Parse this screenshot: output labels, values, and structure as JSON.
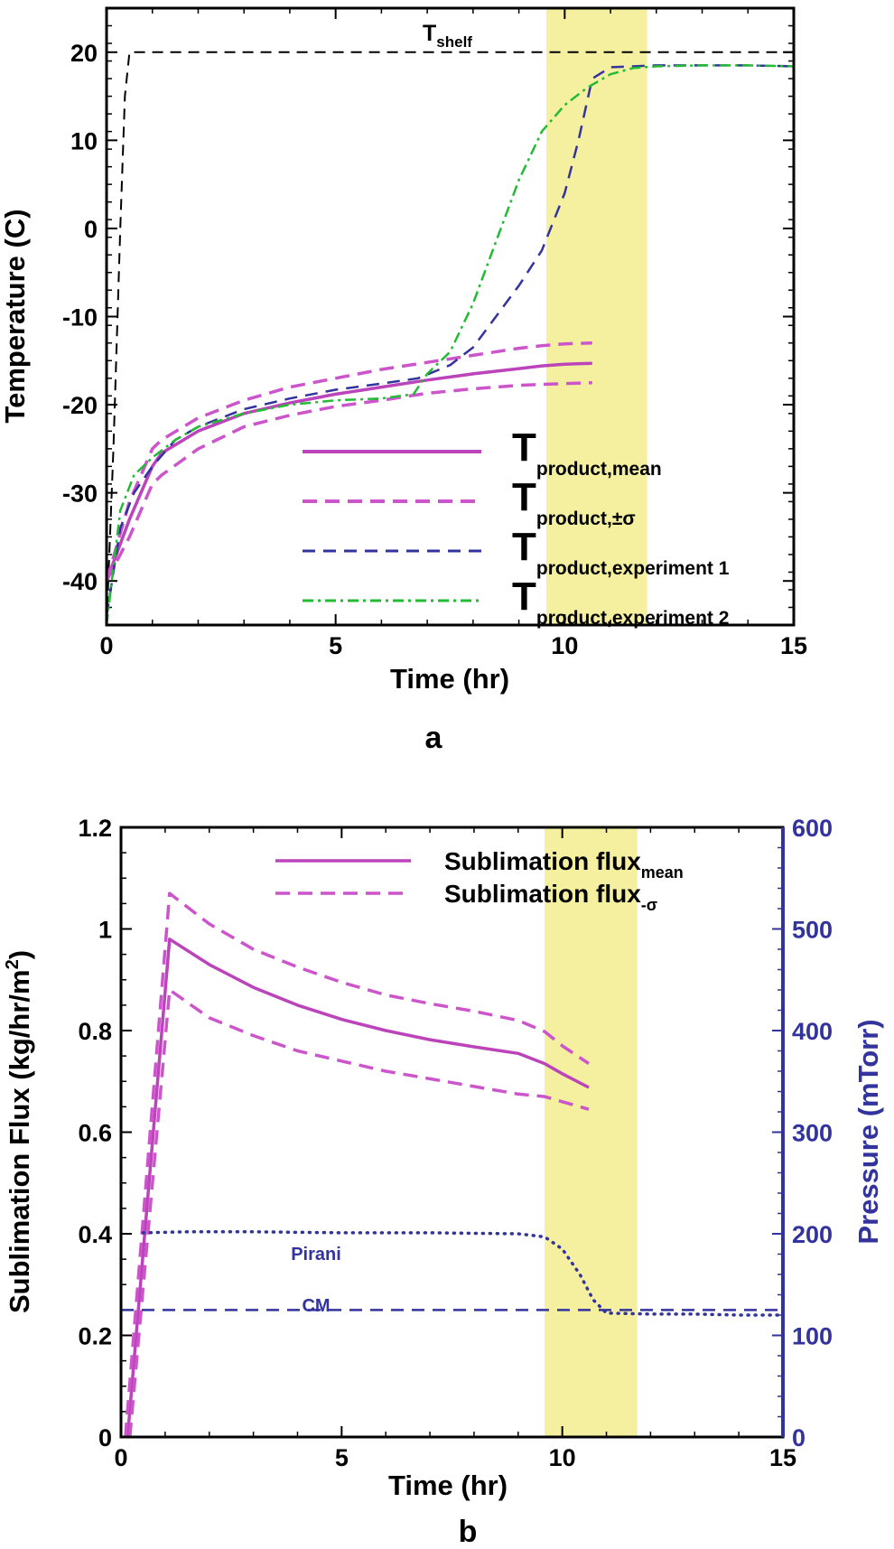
{
  "colors": {
    "mean": "#bb44bb",
    "sigma": "#cc55cc",
    "exp1": "#33339e",
    "exp2": "#22bb33",
    "shelf": "#000000",
    "highlight": "#f5f0a0",
    "right_axis": "#33339e"
  },
  "chart_data": [
    {
      "panel": "a",
      "type": "line",
      "xlabel": "Time (hr)",
      "ylabel": "Temperature (C)",
      "xlim": [
        0,
        15
      ],
      "ylim": [
        -45,
        25
      ],
      "xticks": [
        "0",
        "5",
        "10",
        "15"
      ],
      "yticks": [
        "-40",
        "-30",
        "-20",
        "-10",
        "0",
        "10",
        "20"
      ],
      "highlight_band": [
        9.6,
        11.8
      ],
      "annotation": {
        "base": "T",
        "sub": "shelf"
      },
      "legend": [
        {
          "series": "mean",
          "base": "T",
          "sub": "product,mean"
        },
        {
          "series": "sigma",
          "base": "T",
          "sub": "product,±σ"
        },
        {
          "series": "exp1",
          "base": "T",
          "sub": "product,experiment 1"
        },
        {
          "series": "exp2",
          "base": "T",
          "sub": "product,experiment 2"
        }
      ],
      "series": [
        {
          "key": "shelf",
          "style": "dash-thin",
          "x": [
            0,
            0.15,
            0.3,
            0.4,
            0.5,
            15
          ],
          "y": [
            -45,
            -25,
            0,
            15,
            20,
            20
          ]
        },
        {
          "key": "mean",
          "style": "solid",
          "x": [
            0,
            0.5,
            1,
            1.2,
            2,
            3,
            4,
            5,
            6,
            7,
            8,
            9,
            9.5,
            10,
            10.6
          ],
          "y": [
            -40,
            -33,
            -27,
            -25.5,
            -23,
            -21,
            -19.8,
            -18.8,
            -18,
            -17.2,
            -16.5,
            -15.9,
            -15.6,
            -15.4,
            -15.3
          ]
        },
        {
          "key": "sigma",
          "style": "dash",
          "x": [
            0,
            0.5,
            1,
            1.2,
            2,
            3,
            4,
            5,
            6,
            7,
            8,
            9,
            9.5,
            10,
            10.6
          ],
          "y": [
            -40,
            -31,
            -25,
            -24,
            -21.5,
            -19.5,
            -18,
            -17,
            -16,
            -15.2,
            -14.4,
            -13.6,
            -13.3,
            -13.1,
            -13
          ]
        },
        {
          "key": "sigma",
          "style": "dash",
          "x": [
            0,
            0.5,
            1,
            1.2,
            2,
            3,
            4,
            5,
            6,
            7,
            8,
            9,
            9.5,
            10,
            10.6
          ],
          "y": [
            -40,
            -35,
            -29,
            -28,
            -25,
            -22.5,
            -21.2,
            -20.2,
            -19.5,
            -18.7,
            -18.2,
            -17.8,
            -17.7,
            -17.6,
            -17.5
          ]
        },
        {
          "key": "exp1",
          "style": "dash-long",
          "x": [
            0,
            0.3,
            0.6,
            1,
            1.5,
            2,
            3,
            4,
            5,
            6,
            6.8,
            7.5,
            8,
            8.5,
            9,
            9.5,
            10,
            10.3,
            10.6,
            11,
            12,
            13,
            14,
            15
          ],
          "y": [
            -44,
            -34,
            -30,
            -27,
            -24,
            -22.5,
            -20.5,
            -19.3,
            -18.3,
            -17.6,
            -17,
            -15.5,
            -13.5,
            -10,
            -6.5,
            -2.5,
            4,
            10,
            17,
            18.3,
            18.5,
            18.5,
            18.5,
            18.4
          ]
        },
        {
          "key": "exp2",
          "style": "dashdot",
          "x": [
            0,
            0.3,
            0.6,
            1,
            1.5,
            2,
            3,
            4,
            5,
            6,
            6.7,
            7,
            7.5,
            8,
            8.5,
            9,
            9.5,
            10,
            10.5,
            11,
            11.5,
            12,
            13,
            14,
            15
          ],
          "y": [
            -45,
            -32,
            -28,
            -26,
            -24,
            -22.5,
            -21,
            -20,
            -19.5,
            -19.3,
            -18.8,
            -16.5,
            -14,
            -8.5,
            -1.5,
            5.5,
            11,
            14,
            16,
            17.5,
            18.2,
            18.4,
            18.5,
            18.5,
            18.4
          ]
        }
      ]
    },
    {
      "panel": "b",
      "type": "line",
      "xlabel": "Time (hr)",
      "ylabel": "Sublimation Flux (kg/hr/m",
      "ylabel_sup": "2",
      "ylabel_end": ")",
      "y2label": "Pressure (mTorr)",
      "xlim": [
        0,
        15
      ],
      "ylim": [
        0,
        1.2
      ],
      "y2lim": [
        0,
        600
      ],
      "xticks": [
        "0",
        "5",
        "10",
        "15"
      ],
      "yticks": [
        "0",
        "0.2",
        "0.4",
        "0.6",
        "0.8",
        "1",
        "1.2"
      ],
      "y2ticks": [
        "0",
        "100",
        "200",
        "300",
        "400",
        "500",
        "600"
      ],
      "highlight_band": [
        9.6,
        11.7
      ],
      "annotations": [
        "Pirani",
        "CM"
      ],
      "legend": [
        {
          "series": "flux_mean",
          "base": "Sublimation flux",
          "sub": "mean"
        },
        {
          "series": "flux_sigma",
          "base": "Sublimation flux",
          "sub": "-σ"
        }
      ],
      "series": [
        {
          "key": "mean",
          "style": "solid",
          "axis": "left",
          "x": [
            0.15,
            1.1,
            2,
            3,
            4,
            5,
            6,
            7,
            8,
            9,
            9.6,
            10,
            10.6
          ],
          "y": [
            0,
            0.98,
            0.93,
            0.885,
            0.85,
            0.822,
            0.8,
            0.782,
            0.768,
            0.755,
            0.735,
            0.715,
            0.688
          ]
        },
        {
          "key": "sigma",
          "style": "dash",
          "axis": "left",
          "x": [
            0.1,
            1.1,
            2,
            3,
            4,
            5,
            6,
            7,
            8,
            9,
            9.6,
            10,
            10.6
          ],
          "y": [
            0,
            1.07,
            1.01,
            0.96,
            0.925,
            0.895,
            0.87,
            0.853,
            0.838,
            0.82,
            0.798,
            0.77,
            0.735
          ]
        },
        {
          "key": "sigma",
          "style": "dash",
          "axis": "left",
          "x": [
            0.2,
            1.1,
            2,
            3,
            4,
            5,
            6,
            7,
            8,
            9,
            9.6,
            10,
            10.6
          ],
          "y": [
            0,
            0.88,
            0.825,
            0.79,
            0.76,
            0.74,
            0.72,
            0.705,
            0.69,
            0.675,
            0.67,
            0.66,
            0.645
          ]
        },
        {
          "key": "exp1",
          "style": "dotted",
          "axis": "right",
          "x": [
            0.5,
            1.5,
            3,
            5,
            7,
            9,
            9.6,
            10,
            10.4,
            10.7,
            11,
            12,
            13,
            14,
            15
          ],
          "y": [
            201,
            202,
            202,
            201,
            201,
            200,
            197,
            185,
            160,
            135,
            122,
            121,
            121,
            120,
            120
          ]
        },
        {
          "key": "exp1",
          "style": "dash-long",
          "axis": "right",
          "x": [
            0,
            15
          ],
          "y": [
            125,
            125
          ]
        }
      ]
    }
  ]
}
